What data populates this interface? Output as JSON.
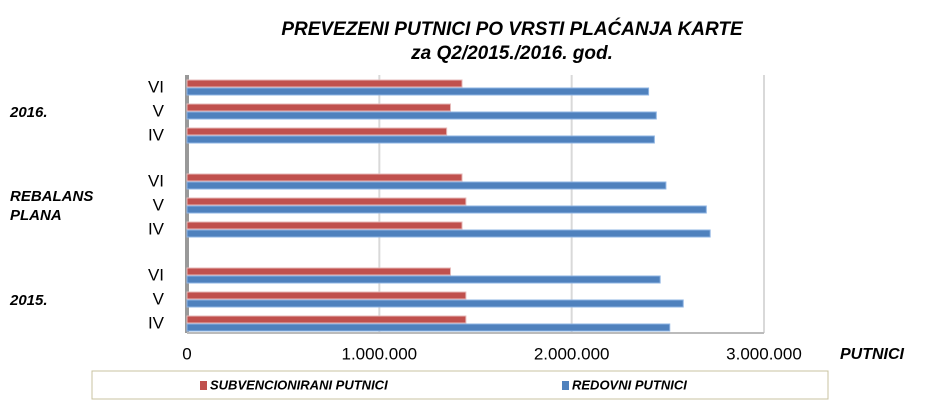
{
  "chart_data": {
    "type": "bar",
    "orientation": "horizontal",
    "title": "PREVEZENI PUTNICI PO VRSTI PLAĆANJA KARTE",
    "subtitle": "za Q2/2015./2016. god.",
    "x_label": "PUTNICI",
    "category_groups": [
      "2016.",
      "REBALANS PLANA",
      "2015."
    ],
    "categories": [
      "VI",
      "V",
      "IV",
      "VI",
      "V",
      "IV",
      "VI",
      "V",
      "IV"
    ],
    "series": [
      {
        "name": "SUBVENCIONIRANI PUTNICI",
        "color": "#c0504d",
        "values": [
          1430000,
          1370000,
          1350000,
          1430000,
          1450000,
          1430000,
          1370000,
          1450000,
          1450000
        ]
      },
      {
        "name": "REDOVNI PUTNICI",
        "color": "#4f81bd",
        "values": [
          2400000,
          2440000,
          2430000,
          2490000,
          2700000,
          2720000,
          2460000,
          2580000,
          2510000
        ]
      }
    ],
    "xlim": [
      0,
      3000000
    ],
    "xticks": [
      0,
      {
        "value": 1000000,
        "label": "1.000.000"
      },
      {
        "value": 2000000,
        "label": "2.000.000"
      },
      {
        "value": 3000000,
        "label": "3.000.000"
      }
    ],
    "grid": true,
    "legend": "bottom"
  }
}
